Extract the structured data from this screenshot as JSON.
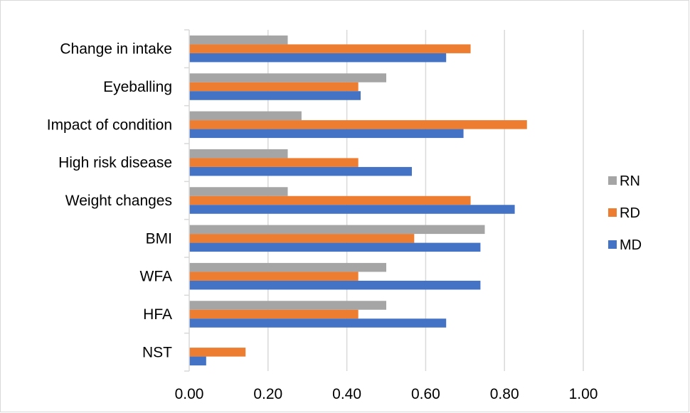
{
  "chart_data": {
    "type": "bar",
    "orientation": "horizontal",
    "categories": [
      "Change in intake",
      "Eyeballing",
      "Impact of condition",
      "High risk disease",
      "Weight changes",
      "BMI",
      "WFA",
      "HFA",
      "NST"
    ],
    "series": [
      {
        "name": "RN",
        "color": "#a5a5a5",
        "values": [
          0.25,
          0.5,
          0.285,
          0.25,
          0.25,
          0.75,
          0.5,
          0.5,
          0.0
        ]
      },
      {
        "name": "RD",
        "color": "#ed7d31",
        "values": [
          0.714,
          0.429,
          0.857,
          0.429,
          0.714,
          0.571,
          0.429,
          0.429,
          0.143
        ]
      },
      {
        "name": "MD",
        "color": "#4472c4",
        "values": [
          0.652,
          0.435,
          0.696,
          0.565,
          0.826,
          0.739,
          0.739,
          0.652,
          0.043
        ]
      }
    ],
    "xlim": [
      0,
      1.0
    ],
    "xticks": [
      "0.00",
      "0.20",
      "0.40",
      "0.60",
      "0.80",
      "1.00"
    ],
    "grid": "vertical",
    "legend_position": "right",
    "legend_order": [
      "RN",
      "RD",
      "MD"
    ]
  }
}
